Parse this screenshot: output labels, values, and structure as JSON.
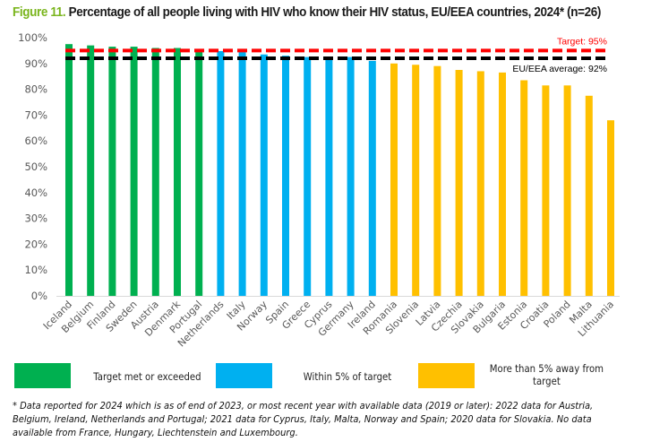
{
  "title": {
    "figure_label": "Figure 11.",
    "text": " Percentage of all people living with HIV who know their HIV status, EU/EEA countries, 2024* (n=26)"
  },
  "colors": {
    "met": "#00b050",
    "within": "#00b0f0",
    "away": "#ffc000",
    "target_line": "#ff0000",
    "average_line": "#000000",
    "figure_label": "#7ab51d"
  },
  "chart_data": {
    "type": "bar",
    "title": "Percentage of all people living with HIV who know their HIV status, EU/EEA countries, 2024* (n=26)",
    "xlabel": "",
    "ylabel": "",
    "ylim": [
      0,
      100
    ],
    "yticks": [
      0,
      10,
      20,
      30,
      40,
      50,
      60,
      70,
      80,
      90,
      100
    ],
    "ytick_labels": [
      "0%",
      "10%",
      "20%",
      "30%",
      "40%",
      "50%",
      "60%",
      "70%",
      "80%",
      "90%",
      "100%"
    ],
    "grid": false,
    "categories": [
      "Iceland",
      "Belgium",
      "Finland",
      "Sweden",
      "Austria",
      "Denmark",
      "Portugal",
      "Netherlands",
      "Italy",
      "Norway",
      "Spain",
      "Greece",
      "Cyprus",
      "Germany",
      "Ireland",
      "Romania",
      "Slovenia",
      "Latvia",
      "Czechia",
      "Slovakia",
      "Bulgaria",
      "Estonia",
      "Croatia",
      "Poland",
      "Malta",
      "Lithuania"
    ],
    "values": [
      97.5,
      97,
      96.5,
      96.5,
      96,
      96,
      95.5,
      94.8,
      94.8,
      93.5,
      93,
      92.5,
      92.5,
      92.5,
      91,
      90,
      89.5,
      89,
      87.5,
      87,
      86.5,
      83.5,
      81.5,
      81.5,
      77.5,
      68
    ],
    "groups": [
      "met",
      "met",
      "met",
      "met",
      "met",
      "met",
      "met",
      "within",
      "within",
      "within",
      "within",
      "within",
      "within",
      "within",
      "within",
      "away",
      "away",
      "away",
      "away",
      "away",
      "away",
      "away",
      "away",
      "away",
      "away",
      "away"
    ],
    "reference_lines": [
      {
        "name": "target",
        "value": 95,
        "label": "Target: 95%",
        "color": "#ff0000",
        "style": "dashed"
      },
      {
        "name": "average",
        "value": 92,
        "label": "EU/EEA average: 92%",
        "color": "#000000",
        "style": "dashed"
      }
    ],
    "legend": {
      "placement": "bottom",
      "entries": [
        {
          "key": "met",
          "label": "Target met or exceeded",
          "color": "#00b050"
        },
        {
          "key": "within",
          "label": "Within 5% of target",
          "color": "#00b0f0"
        },
        {
          "key": "away",
          "label": "More than 5% away from target",
          "color": "#ffc000"
        }
      ]
    }
  },
  "footnote": "* Data reported for 2024 which is as of end of 2023, or most recent year with available data (2019 or later): 2022 data for Austria, Belgium, Ireland, Netherlands and Portugal; 2021 data for Cyprus, Italy, Malta, Norway and Spain; 2020 data for Slovakia. No data available from France, Hungary, Liechtenstein and Luxembourg."
}
